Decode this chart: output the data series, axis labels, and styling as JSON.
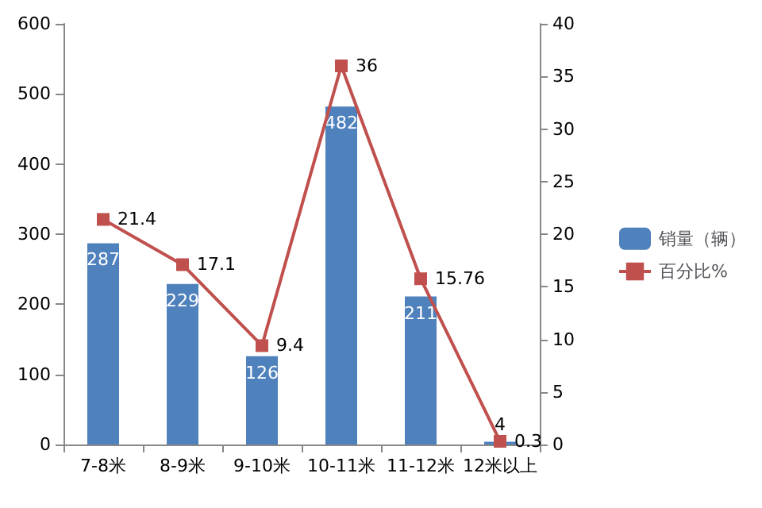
{
  "chart_data": {
    "type": "bar",
    "categories": [
      "7-8米",
      "8-9米",
      "9-10米",
      "10-11米",
      "11-12米",
      "12米以上"
    ],
    "series": [
      {
        "name": "销量（辆）",
        "color": "#4f81bd",
        "values": [
          287,
          229,
          126,
          482,
          211,
          4
        ]
      },
      {
        "name": "百分比%",
        "type": "line",
        "axis": "y2",
        "color": "#c0504d",
        "marker": "square",
        "values": [
          21.4,
          17.1,
          9.4,
          36,
          15.76,
          0.3
        ]
      }
    ],
    "ylim": [
      0,
      600
    ],
    "yticks": [
      0,
      100,
      200,
      300,
      400,
      500,
      600
    ],
    "y2lim": [
      0,
      40
    ],
    "y2ticks": [
      0,
      5,
      10,
      15,
      20,
      25,
      30,
      35,
      40
    ],
    "data_labels": true,
    "grid": false,
    "legend": "right"
  }
}
